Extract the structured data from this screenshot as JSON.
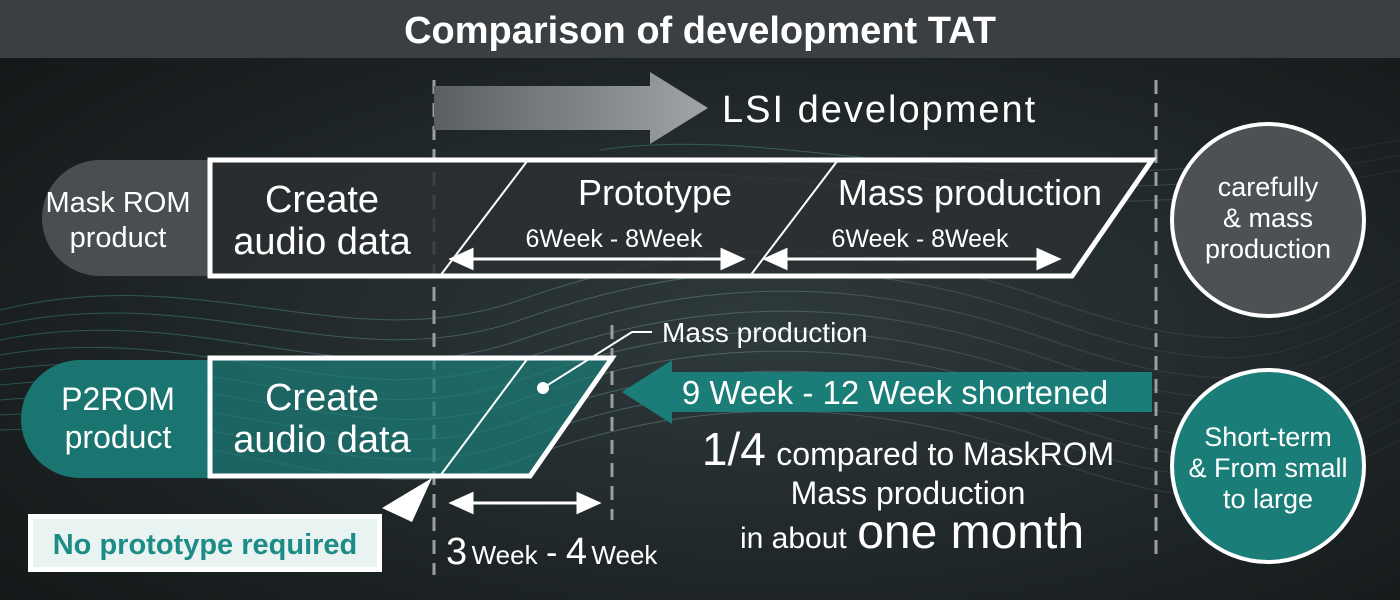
{
  "title": "Comparison of development TAT",
  "timeline_label": "LSI development",
  "mask_rom": {
    "label_line1": "Mask ROM",
    "label_line2": "product",
    "create_line1": "Create",
    "create_line2": "audio data",
    "prototype": "Prototype",
    "prototype_duration": "6Week - 8Week",
    "mass_production": "Mass production",
    "mass_duration": "6Week - 8Week",
    "badge_line1": "carefully",
    "badge_line2": "& mass",
    "badge_line3": "production"
  },
  "p2rom": {
    "label_line1": "P2ROM",
    "label_line2": "product",
    "create_line1": "Create",
    "create_line2": "audio data",
    "mass_callout": "Mass production",
    "shortened": "9 Week - 12 Week shortened",
    "ratio_big": "1/4",
    "ratio_rest": "compared to MaskROM",
    "mass_line2": "Mass production",
    "about_small": "in about",
    "about_big": "one month",
    "no_proto": "No prototype required",
    "dur_num1": "3",
    "dur_unit1": "Week",
    "dur_dash": "-",
    "dur_num2": "4",
    "dur_unit2": "Week",
    "badge_line1": "Short-term",
    "badge_line2": "& From small",
    "badge_line3": "to large"
  },
  "colors": {
    "title_bar": "#3a3f43",
    "teal": "#1b7d78",
    "teal_dark": "#15615d",
    "teal_text": "#1e8c86",
    "white": "#ffffff"
  }
}
